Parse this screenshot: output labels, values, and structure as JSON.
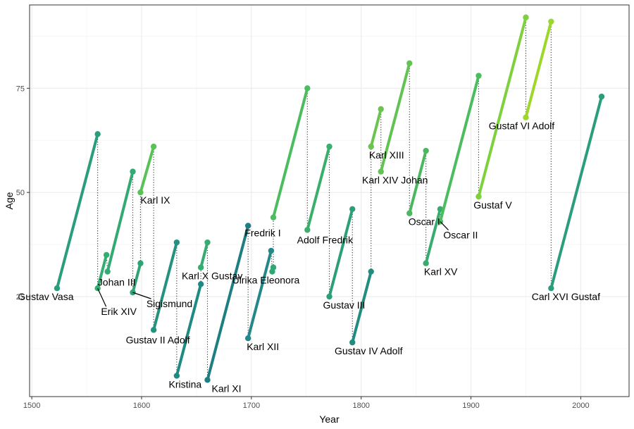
{
  "chart_data": {
    "type": "line",
    "xlabel": "Year",
    "ylabel": "Age",
    "xlim": [
      1498,
      2044
    ],
    "ylim": [
      1,
      95
    ],
    "xticks": [
      1500,
      1600,
      1700,
      1800,
      1900,
      2000
    ],
    "yticks": [
      25,
      50,
      75
    ],
    "grid": true,
    "series": [
      {
        "name": "Gustav Vasa",
        "x0": 1523,
        "y0": 27,
        "x1": 1560,
        "y1": 64,
        "color": "#2a9d7c"
      },
      {
        "name": "Erik XIV",
        "x0": 1560,
        "y0": 27,
        "x1": 1568,
        "y1": 35,
        "color": "#34ad73"
      },
      {
        "name": "Johan III",
        "x0": 1569,
        "y0": 31,
        "x1": 1592,
        "y1": 55,
        "color": "#33aa74"
      },
      {
        "name": "Sigismund",
        "x0": 1592,
        "y0": 26,
        "x1": 1599,
        "y1": 33,
        "color": "#2ea476"
      },
      {
        "name": "Karl IX",
        "x0": 1599,
        "y0": 50,
        "x1": 1611,
        "y1": 61,
        "color": "#58c259"
      },
      {
        "name": "Gustav II Adolf",
        "x0": 1611,
        "y0": 17,
        "x1": 1632,
        "y1": 38,
        "color": "#25927f"
      },
      {
        "name": "Kristina",
        "x0": 1632,
        "y0": 6,
        "x1": 1654,
        "y1": 28,
        "color": "#1e8a83"
      },
      {
        "name": "Karl X Gustav",
        "x0": 1654,
        "y0": 32,
        "x1": 1660,
        "y1": 38,
        "color": "#35ad72"
      },
      {
        "name": "Karl XI",
        "x0": 1660,
        "y0": 5,
        "x1": 1697,
        "y1": 42,
        "color": "#1e7f83"
      },
      {
        "name": "Karl XII",
        "x0": 1697,
        "y0": 15,
        "x1": 1718,
        "y1": 36,
        "color": "#24888a"
      },
      {
        "name": "Ulrika Eleonora",
        "x0": 1719,
        "y0": 31,
        "x1": 1720,
        "y1": 32,
        "color": "#31a676"
      },
      {
        "name": "Fredrik I",
        "x0": 1720,
        "y0": 44,
        "x1": 1751,
        "y1": 75,
        "color": "#4bbd5f"
      },
      {
        "name": "Adolf Fredrik",
        "x0": 1751,
        "y0": 41,
        "x1": 1771,
        "y1": 61,
        "color": "#3aaf6c"
      },
      {
        "name": "Gustav III",
        "x0": 1771,
        "y0": 25,
        "x1": 1792,
        "y1": 46,
        "color": "#2c9f78"
      },
      {
        "name": "Gustav IV Adolf",
        "x0": 1792,
        "y0": 14,
        "x1": 1809,
        "y1": 31,
        "color": "#218d80"
      },
      {
        "name": "Karl XIII",
        "x0": 1809,
        "y0": 61,
        "x1": 1818,
        "y1": 70,
        "color": "#6ac44f"
      },
      {
        "name": "Karl XIV Johan",
        "x0": 1818,
        "y0": 55,
        "x1": 1844,
        "y1": 81,
        "color": "#62c352"
      },
      {
        "name": "Oscar I",
        "x0": 1844,
        "y0": 45,
        "x1": 1859,
        "y1": 60,
        "color": "#4bb861"
      },
      {
        "name": "Karl XV",
        "x0": 1859,
        "y0": 33,
        "x1": 1872,
        "y1": 46,
        "color": "#37ab70"
      },
      {
        "name": "Oscar II",
        "x0": 1872,
        "y0": 43,
        "x1": 1907,
        "y1": 78,
        "color": "#4cbd5e"
      },
      {
        "name": "Gustaf V",
        "x0": 1907,
        "y0": 49,
        "x1": 1950,
        "y1": 92,
        "color": "#7ed03c"
      },
      {
        "name": "Gustaf VI Adolf",
        "x0": 1950,
        "y0": 68,
        "x1": 1973,
        "y1": 91,
        "color": "#9cd729"
      },
      {
        "name": "Carl XVI Gustaf",
        "x0": 1973,
        "y0": 27,
        "x1": 2019,
        "y1": 73,
        "color": "#2a9d7c"
      }
    ]
  }
}
